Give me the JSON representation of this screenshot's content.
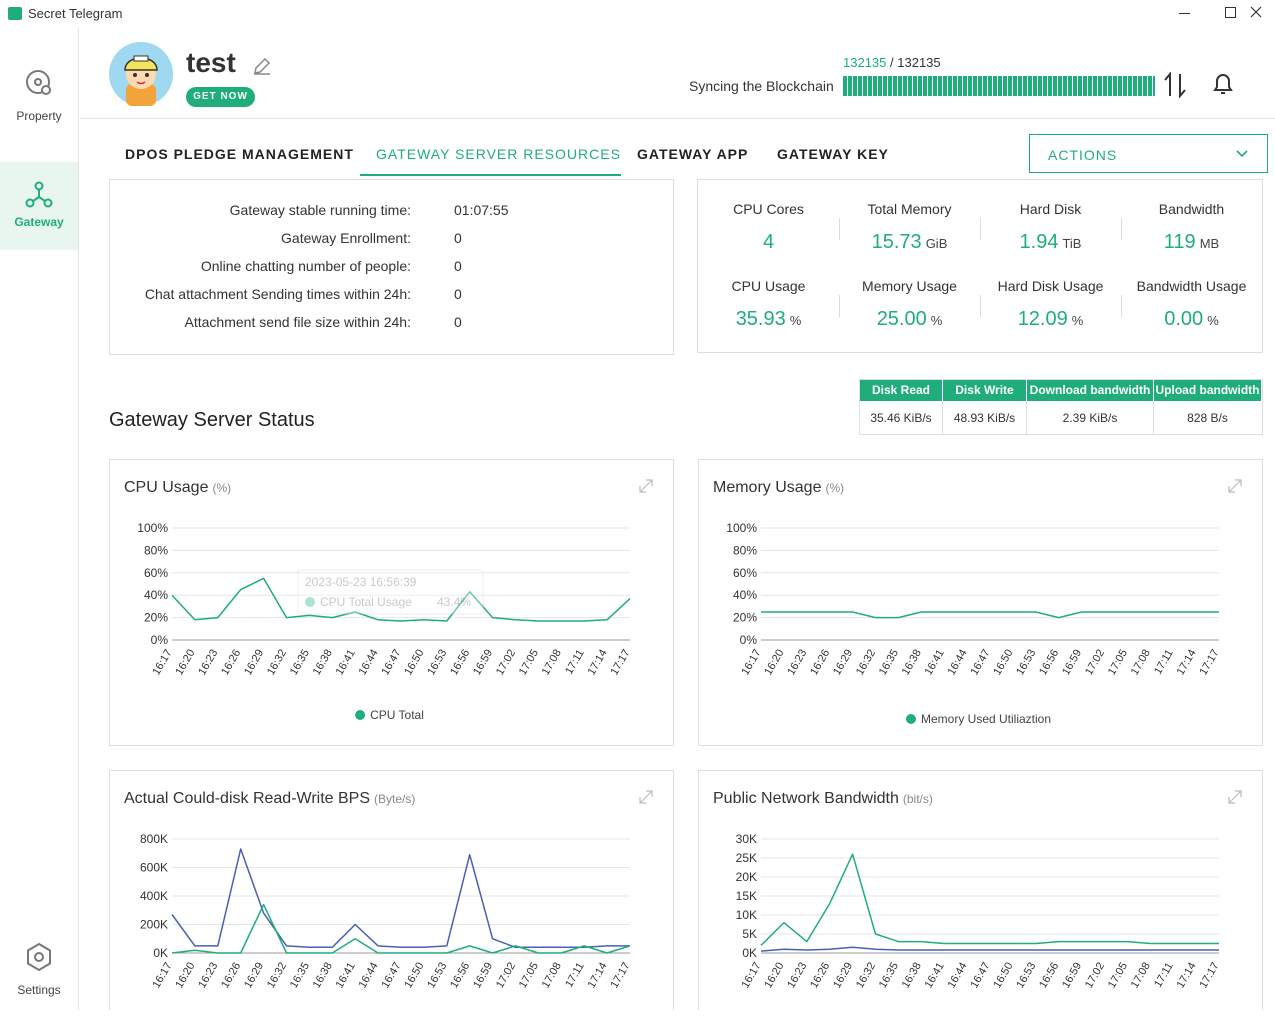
{
  "window": {
    "title": "Secret Telegram"
  },
  "sidebar": {
    "items": [
      "Property",
      "Gateway",
      "Settings"
    ]
  },
  "profile": {
    "name": "test",
    "button": "GET NOW"
  },
  "sync": {
    "current": "132135",
    "total": "132135",
    "separator": "/",
    "label": "Syncing the Blockchain"
  },
  "tabs": [
    "DPOS PLEDGE MANAGEMENT",
    "GATEWAY SERVER RESOURCES",
    "GATEWAY APP",
    "GATEWAY KEY"
  ],
  "actions": "ACTIONS",
  "info": {
    "rows": [
      [
        "Gateway stable running time:",
        "01:07:55"
      ],
      [
        "Gateway Enrollment:",
        "0"
      ],
      [
        "Online chatting number of people:",
        "0"
      ],
      [
        "Chat attachment Sending times within 24h:",
        "0"
      ],
      [
        "Attachment send file size within 24h:",
        "0"
      ]
    ]
  },
  "stats": [
    {
      "label": "CPU Cores",
      "value": "4"
    },
    {
      "label": "Total Memory",
      "value": "15.73",
      "unit": "GiB"
    },
    {
      "label": "Hard Disk",
      "value": "1.94",
      "unit": "TiB"
    },
    {
      "label": "Bandwidth",
      "value": "119",
      "unit": "MB"
    },
    {
      "label": "CPU Usage",
      "value": "35.93",
      "unit": "%"
    },
    {
      "label": "Memory Usage",
      "value": "25.00",
      "unit": "%"
    },
    {
      "label": "Hard Disk Usage",
      "value": "12.09",
      "unit": "%"
    },
    {
      "label": "Bandwidth Usage",
      "value": "0.00",
      "unit": "%"
    }
  ],
  "transfer": {
    "headers": [
      "Disk Read",
      "Disk Write",
      "Download bandwidth",
      "Upload bandwidth"
    ],
    "values": [
      "35.46 KiB/s",
      "48.93 KiB/s",
      "2.39 KiB/s",
      "828 B/s"
    ]
  },
  "section_title": "Gateway Server Status",
  "chart_data": [
    {
      "type": "line",
      "title": "CPU Usage",
      "unit": "(%)",
      "categories": [
        "16:17",
        "16:20",
        "16:23",
        "16:26",
        "16:29",
        "16:32",
        "16:35",
        "16:38",
        "16:41",
        "16:44",
        "16:47",
        "16:50",
        "16:53",
        "16:56",
        "16:59",
        "17:02",
        "17:05",
        "17:08",
        "17:11",
        "17:14",
        "17:17"
      ],
      "series": [
        {
          "name": "CPU Total",
          "color": "#1fae7a",
          "values": [
            40,
            18,
            20,
            45,
            55,
            20,
            22,
            20,
            25,
            18,
            17,
            18,
            17,
            43,
            20,
            18,
            17,
            17,
            17,
            18,
            37
          ]
        }
      ],
      "ylim": [
        0,
        100
      ],
      "yticks": [
        {
          "value": 0,
          "label": "0%"
        },
        {
          "value": 20,
          "label": "20%"
        },
        {
          "value": 40,
          "label": "40%"
        },
        {
          "value": 60,
          "label": "60%"
        },
        {
          "value": 80,
          "label": "80%"
        },
        {
          "value": 100,
          "label": "100%"
        }
      ],
      "grid": true,
      "legend": "bottom",
      "tooltip": {
        "time": "2023-05-23 16:56:39",
        "label": "CPU Total Usage",
        "value": "43.4%"
      }
    },
    {
      "type": "line",
      "title": "Memory Usage",
      "unit": "(%)",
      "categories": [
        "16:17",
        "16:20",
        "16:23",
        "16:26",
        "16:29",
        "16:32",
        "16:35",
        "16:38",
        "16:41",
        "16:44",
        "16:47",
        "16:50",
        "16:53",
        "16:56",
        "16:59",
        "17:02",
        "17:05",
        "17:08",
        "17:11",
        "17:14",
        "17:17"
      ],
      "series": [
        {
          "name": "Memory Used Utiliaztion",
          "color": "#1fae7a",
          "values": [
            25,
            25,
            25,
            25,
            25,
            20,
            20,
            25,
            25,
            25,
            25,
            25,
            25,
            20,
            25,
            25,
            25,
            25,
            25,
            25,
            25
          ]
        }
      ],
      "ylim": [
        0,
        100
      ],
      "yticks": [
        {
          "value": 0,
          "label": "0%"
        },
        {
          "value": 20,
          "label": "20%"
        },
        {
          "value": 40,
          "label": "40%"
        },
        {
          "value": 60,
          "label": "60%"
        },
        {
          "value": 80,
          "label": "80%"
        },
        {
          "value": 100,
          "label": "100%"
        }
      ],
      "grid": true,
      "legend": "bottom"
    },
    {
      "type": "line",
      "title": "Actual Could-disk Read-Write BPS",
      "unit": "(Byte/s)",
      "categories": [
        "16:17",
        "16:20",
        "16:23",
        "16:26",
        "16:29",
        "16:32",
        "16:35",
        "16:38",
        "16:41",
        "16:44",
        "16:47",
        "16:50",
        "16:53",
        "16:56",
        "16:59",
        "17:02",
        "17:05",
        "17:08",
        "17:11",
        "17:14",
        "17:17"
      ],
      "series": [
        {
          "color": "#4a5fb5",
          "values": [
            270000,
            50000,
            50000,
            730000,
            280000,
            50000,
            40000,
            40000,
            200000,
            50000,
            40000,
            40000,
            50000,
            690000,
            100000,
            40000,
            40000,
            40000,
            40000,
            50000,
            50000
          ]
        },
        {
          "color": "#1fae7a",
          "values": [
            0,
            20000,
            0,
            0,
            340000,
            0,
            0,
            0,
            100000,
            0,
            0,
            0,
            0,
            50000,
            0,
            50000,
            0,
            0,
            50000,
            0,
            50000
          ]
        }
      ],
      "ylim": [
        0,
        800000
      ],
      "yticks": [
        {
          "value": 0,
          "label": "0K"
        },
        {
          "value": 200000,
          "label": "200K"
        },
        {
          "value": 400000,
          "label": "400K"
        },
        {
          "value": 600000,
          "label": "600K"
        },
        {
          "value": 800000,
          "label": "800K"
        }
      ],
      "grid": true
    },
    {
      "type": "line",
      "title": "Public Network Bandwidth",
      "unit": "(bit/s)",
      "categories": [
        "16:17",
        "16:20",
        "16:23",
        "16:26",
        "16:29",
        "16:32",
        "16:35",
        "16:38",
        "16:41",
        "16:44",
        "16:47",
        "16:50",
        "16:53",
        "16:56",
        "16:59",
        "17:02",
        "17:05",
        "17:08",
        "17:11",
        "17:14",
        "17:17"
      ],
      "series": [
        {
          "color": "#1fae7a",
          "values": [
            2000,
            8000,
            3000,
            13000,
            26000,
            5000,
            3000,
            3000,
            2500,
            2500,
            2500,
            2500,
            2500,
            3000,
            3000,
            3000,
            3000,
            2500,
            2500,
            2500,
            2500
          ]
        },
        {
          "color": "#4a5fb5",
          "values": [
            500,
            1000,
            800,
            1000,
            1500,
            1000,
            800,
            800,
            800,
            800,
            800,
            800,
            800,
            800,
            800,
            800,
            800,
            800,
            800,
            800,
            800
          ]
        }
      ],
      "ylim": [
        0,
        30000
      ],
      "yticks": [
        {
          "value": 0,
          "label": "0K"
        },
        {
          "value": 5000,
          "label": "5K"
        },
        {
          "value": 10000,
          "label": "10K"
        },
        {
          "value": 15000,
          "label": "15K"
        },
        {
          "value": 20000,
          "label": "20K"
        },
        {
          "value": 25000,
          "label": "25K"
        },
        {
          "value": 30000,
          "label": "30K"
        }
      ],
      "grid": true
    }
  ]
}
